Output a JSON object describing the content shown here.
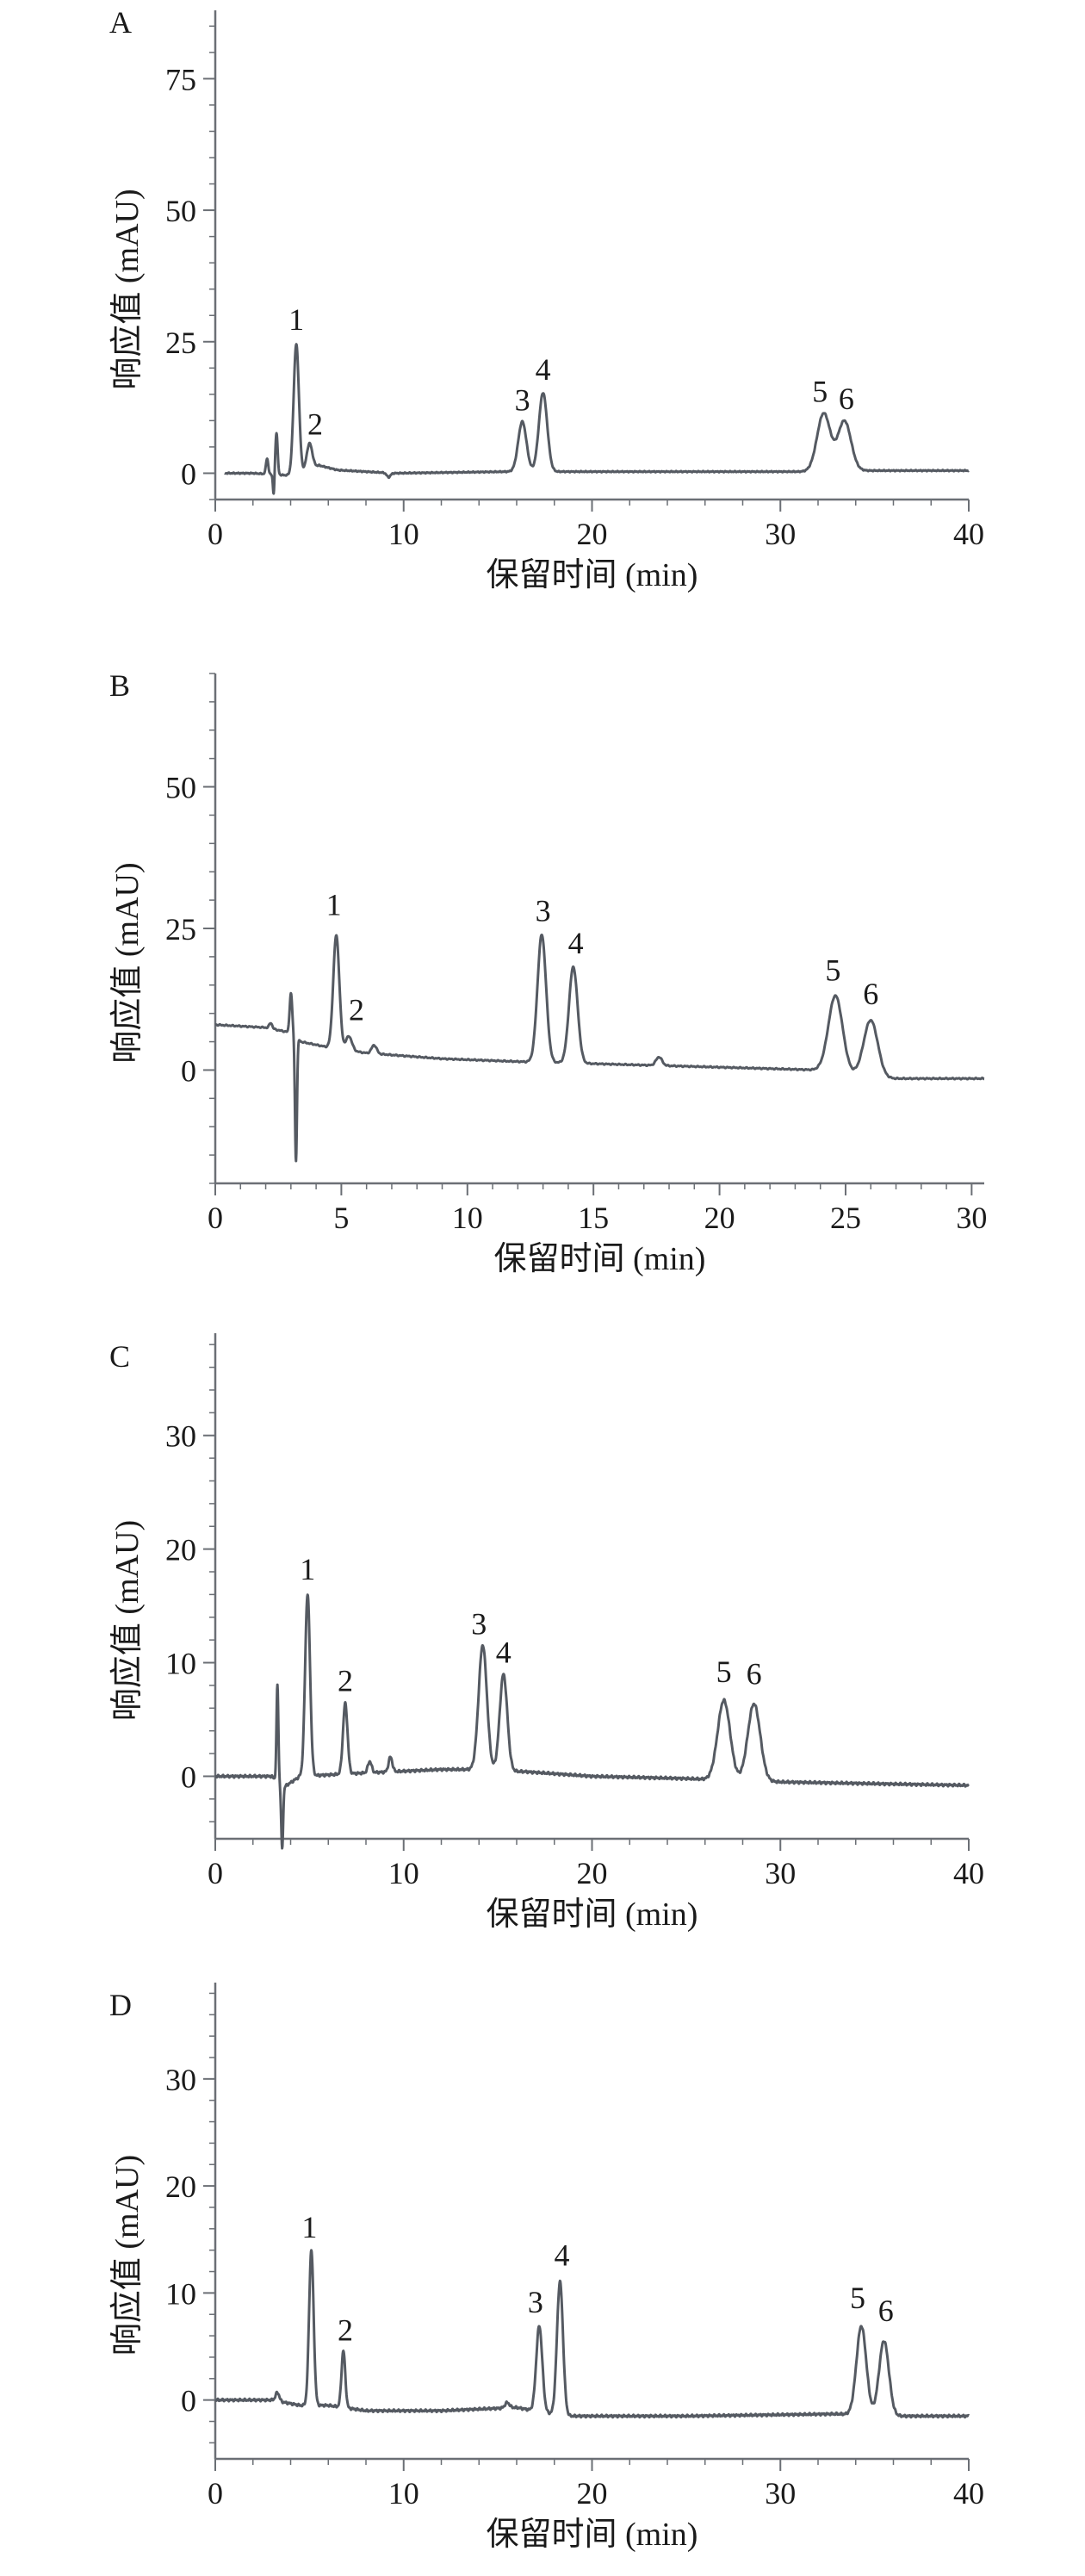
{
  "chart_data": [
    {
      "type": "line",
      "panel_label": "A",
      "xlabel": "保留时间 (min)",
      "ylabel": "响应值 (mAU)",
      "xlim": [
        0,
        40
      ],
      "ylim": [
        -5,
        88
      ],
      "xticks": [
        0,
        10,
        20,
        30,
        40
      ],
      "yticks": [
        0,
        25,
        50,
        75
      ],
      "x_minor_step": 2,
      "y_minor_step": 5,
      "grid": false,
      "line_color": "#555a62",
      "baseline": [
        [
          0.5,
          0
        ],
        [
          2.0,
          0
        ],
        [
          4.3,
          -0.5
        ],
        [
          5.5,
          1.5
        ],
        [
          6.5,
          0.6
        ],
        [
          8,
          0.3
        ],
        [
          9.5,
          0
        ],
        [
          15.5,
          0.3
        ],
        [
          18.5,
          0.3
        ],
        [
          31,
          0.3
        ],
        [
          34.5,
          0.5
        ],
        [
          40,
          0.5
        ]
      ],
      "peaks": [
        {
          "t": 2.75,
          "h": 3,
          "w": 0.06
        },
        {
          "t": 3.1,
          "h": -4,
          "w": 0.04
        },
        {
          "t": 3.25,
          "h": 8,
          "w": 0.06
        },
        {
          "t": 4.3,
          "h": 25,
          "w": 0.14
        },
        {
          "t": 5.0,
          "h": 5,
          "w": 0.15
        },
        {
          "t": 9.2,
          "h": -0.8,
          "w": 0.1
        },
        {
          "t": 16.3,
          "h": 9.5,
          "w": 0.22
        },
        {
          "t": 17.4,
          "h": 15,
          "w": 0.22
        },
        {
          "t": 32.3,
          "h": 11,
          "w": 0.35
        },
        {
          "t": 33.4,
          "h": 9.5,
          "w": 0.35
        }
      ],
      "peak_labels": [
        {
          "label": "1",
          "t": 4.3,
          "y": 25.3
        },
        {
          "label": "2",
          "t": 5.3,
          "y": 5.4
        },
        {
          "label": "3",
          "t": 16.3,
          "y": 10
        },
        {
          "label": "4",
          "t": 17.4,
          "y": 15.8
        },
        {
          "label": "5",
          "t": 32.1,
          "y": 11.6
        },
        {
          "label": "6",
          "t": 33.5,
          "y": 10.2
        }
      ]
    },
    {
      "type": "line",
      "panel_label": "B",
      "xlabel": "保留时间 (min)",
      "ylabel": "响应值 (mAU)",
      "xlim": [
        0,
        30.5
      ],
      "ylim": [
        -20,
        70
      ],
      "xticks": [
        0,
        5,
        10,
        15,
        20,
        25,
        30
      ],
      "yticks": [
        0,
        25,
        50
      ],
      "x_minor_step": 1,
      "y_minor_step": 5,
      "grid": false,
      "line_color": "#555a62",
      "baseline": [
        [
          0,
          8
        ],
        [
          2,
          7.5
        ],
        [
          3.1,
          6.5
        ],
        [
          3.4,
          5
        ],
        [
          4.5,
          4
        ],
        [
          6,
          3
        ],
        [
          9,
          2
        ],
        [
          12,
          1.5
        ],
        [
          16,
          1
        ],
        [
          20,
          0.5
        ],
        [
          24,
          0
        ],
        [
          26.5,
          -1.5
        ],
        [
          30.5,
          -1.5
        ]
      ],
      "peaks": [
        {
          "t": 2.2,
          "h": 1,
          "w": 0.06
        },
        {
          "t": 3.0,
          "h": 7,
          "w": 0.05
        },
        {
          "t": 3.2,
          "h": -22,
          "w": 0.04
        },
        {
          "t": 4.8,
          "h": 20,
          "w": 0.12
        },
        {
          "t": 5.3,
          "h": 2.5,
          "w": 0.12
        },
        {
          "t": 6.3,
          "h": 1.5,
          "w": 0.1
        },
        {
          "t": 12.95,
          "h": 22.5,
          "w": 0.17
        },
        {
          "t": 14.2,
          "h": 17,
          "w": 0.17
        },
        {
          "t": 17.6,
          "h": 1.5,
          "w": 0.12
        },
        {
          "t": 24.6,
          "h": 13.5,
          "w": 0.28
        },
        {
          "t": 26.0,
          "h": 10,
          "w": 0.28
        }
      ],
      "peak_labels": [
        {
          "label": "1",
          "t": 4.7,
          "y": 25.5
        },
        {
          "label": "2",
          "t": 5.6,
          "y": 7
        },
        {
          "label": "3",
          "t": 13.0,
          "y": 24.5
        },
        {
          "label": "4",
          "t": 14.3,
          "y": 18.8
        },
        {
          "label": "5",
          "t": 24.5,
          "y": 14
        },
        {
          "label": "6",
          "t": 26.0,
          "y": 9.8
        }
      ]
    },
    {
      "type": "line",
      "panel_label": "C",
      "xlabel": "保留时间 (min)",
      "ylabel": "响应值 (mAU)",
      "xlim": [
        0,
        40
      ],
      "ylim": [
        -5.5,
        39
      ],
      "xticks": [
        0,
        10,
        20,
        30,
        40
      ],
      "yticks": [
        0,
        10,
        20,
        30
      ],
      "x_minor_step": 2,
      "y_minor_step": 2,
      "grid": false,
      "line_color": "#555a62",
      "baseline": [
        [
          0,
          0
        ],
        [
          3,
          0
        ],
        [
          3.6,
          -1
        ],
        [
          4.5,
          0
        ],
        [
          8,
          0.3
        ],
        [
          12,
          0.6
        ],
        [
          13.5,
          0.6
        ],
        [
          16.5,
          0.4
        ],
        [
          20,
          0
        ],
        [
          25,
          -0.2
        ],
        [
          30,
          -0.5
        ],
        [
          40,
          -0.8
        ]
      ],
      "peaks": [
        {
          "t": 3.3,
          "h": 8.5,
          "w": 0.05
        },
        {
          "t": 3.55,
          "h": -5.5,
          "w": 0.05
        },
        {
          "t": 4.9,
          "h": 16,
          "w": 0.13
        },
        {
          "t": 6.9,
          "h": 6.2,
          "w": 0.12
        },
        {
          "t": 8.2,
          "h": 1,
          "w": 0.1
        },
        {
          "t": 9.3,
          "h": 1.3,
          "w": 0.1
        },
        {
          "t": 14.2,
          "h": 11,
          "w": 0.22
        },
        {
          "t": 15.3,
          "h": 8.5,
          "w": 0.2
        },
        {
          "t": 27.0,
          "h": 7,
          "w": 0.33
        },
        {
          "t": 28.6,
          "h": 6.8,
          "w": 0.33
        }
      ],
      "peak_labels": [
        {
          "label": "1",
          "t": 4.9,
          "y": 16.4
        },
        {
          "label": "2",
          "t": 6.9,
          "y": 6.6
        },
        {
          "label": "3",
          "t": 14.0,
          "y": 11.6
        },
        {
          "label": "4",
          "t": 15.3,
          "y": 9.1
        },
        {
          "label": "5",
          "t": 27.0,
          "y": 7.4
        },
        {
          "label": "6",
          "t": 28.6,
          "y": 7.2
        }
      ]
    },
    {
      "type": "line",
      "panel_label": "D",
      "xlabel": "保留时间 (min)",
      "ylabel": "响应值 (mAU)",
      "xlim": [
        0,
        40
      ],
      "ylim": [
        -5.5,
        39
      ],
      "xticks": [
        0,
        10,
        20,
        30,
        40
      ],
      "yticks": [
        0,
        10,
        20,
        30
      ],
      "x_minor_step": 2,
      "y_minor_step": 2,
      "grid": false,
      "line_color": "#555a62",
      "baseline": [
        [
          0,
          0
        ],
        [
          3,
          0
        ],
        [
          4.5,
          -0.5
        ],
        [
          6,
          -0.5
        ],
        [
          8,
          -1
        ],
        [
          12,
          -1
        ],
        [
          16,
          -0.7
        ],
        [
          18.5,
          -1.5
        ],
        [
          25,
          -1.5
        ],
        [
          33,
          -1.3
        ],
        [
          36,
          -1.5
        ],
        [
          40,
          -1.5
        ]
      ],
      "peaks": [
        {
          "t": 3.3,
          "h": 0.8,
          "w": 0.1
        },
        {
          "t": 5.1,
          "h": 14.5,
          "w": 0.12
        },
        {
          "t": 6.8,
          "h": 5.3,
          "w": 0.1
        },
        {
          "t": 15.5,
          "h": 0.5,
          "w": 0.12
        },
        {
          "t": 17.2,
          "h": 8,
          "w": 0.16
        },
        {
          "t": 18.3,
          "h": 12.5,
          "w": 0.16
        },
        {
          "t": 34.3,
          "h": 8.3,
          "w": 0.26
        },
        {
          "t": 35.5,
          "h": 7,
          "w": 0.26
        }
      ],
      "peak_labels": [
        {
          "label": "1",
          "t": 5.0,
          "y": 14.2
        },
        {
          "label": "2",
          "t": 6.9,
          "y": 4.6
        },
        {
          "label": "3",
          "t": 17.0,
          "y": 7.2
        },
        {
          "label": "4",
          "t": 18.4,
          "y": 11.6
        },
        {
          "label": "5",
          "t": 34.1,
          "y": 7.6
        },
        {
          "label": "6",
          "t": 35.6,
          "y": 6.4
        }
      ]
    }
  ]
}
